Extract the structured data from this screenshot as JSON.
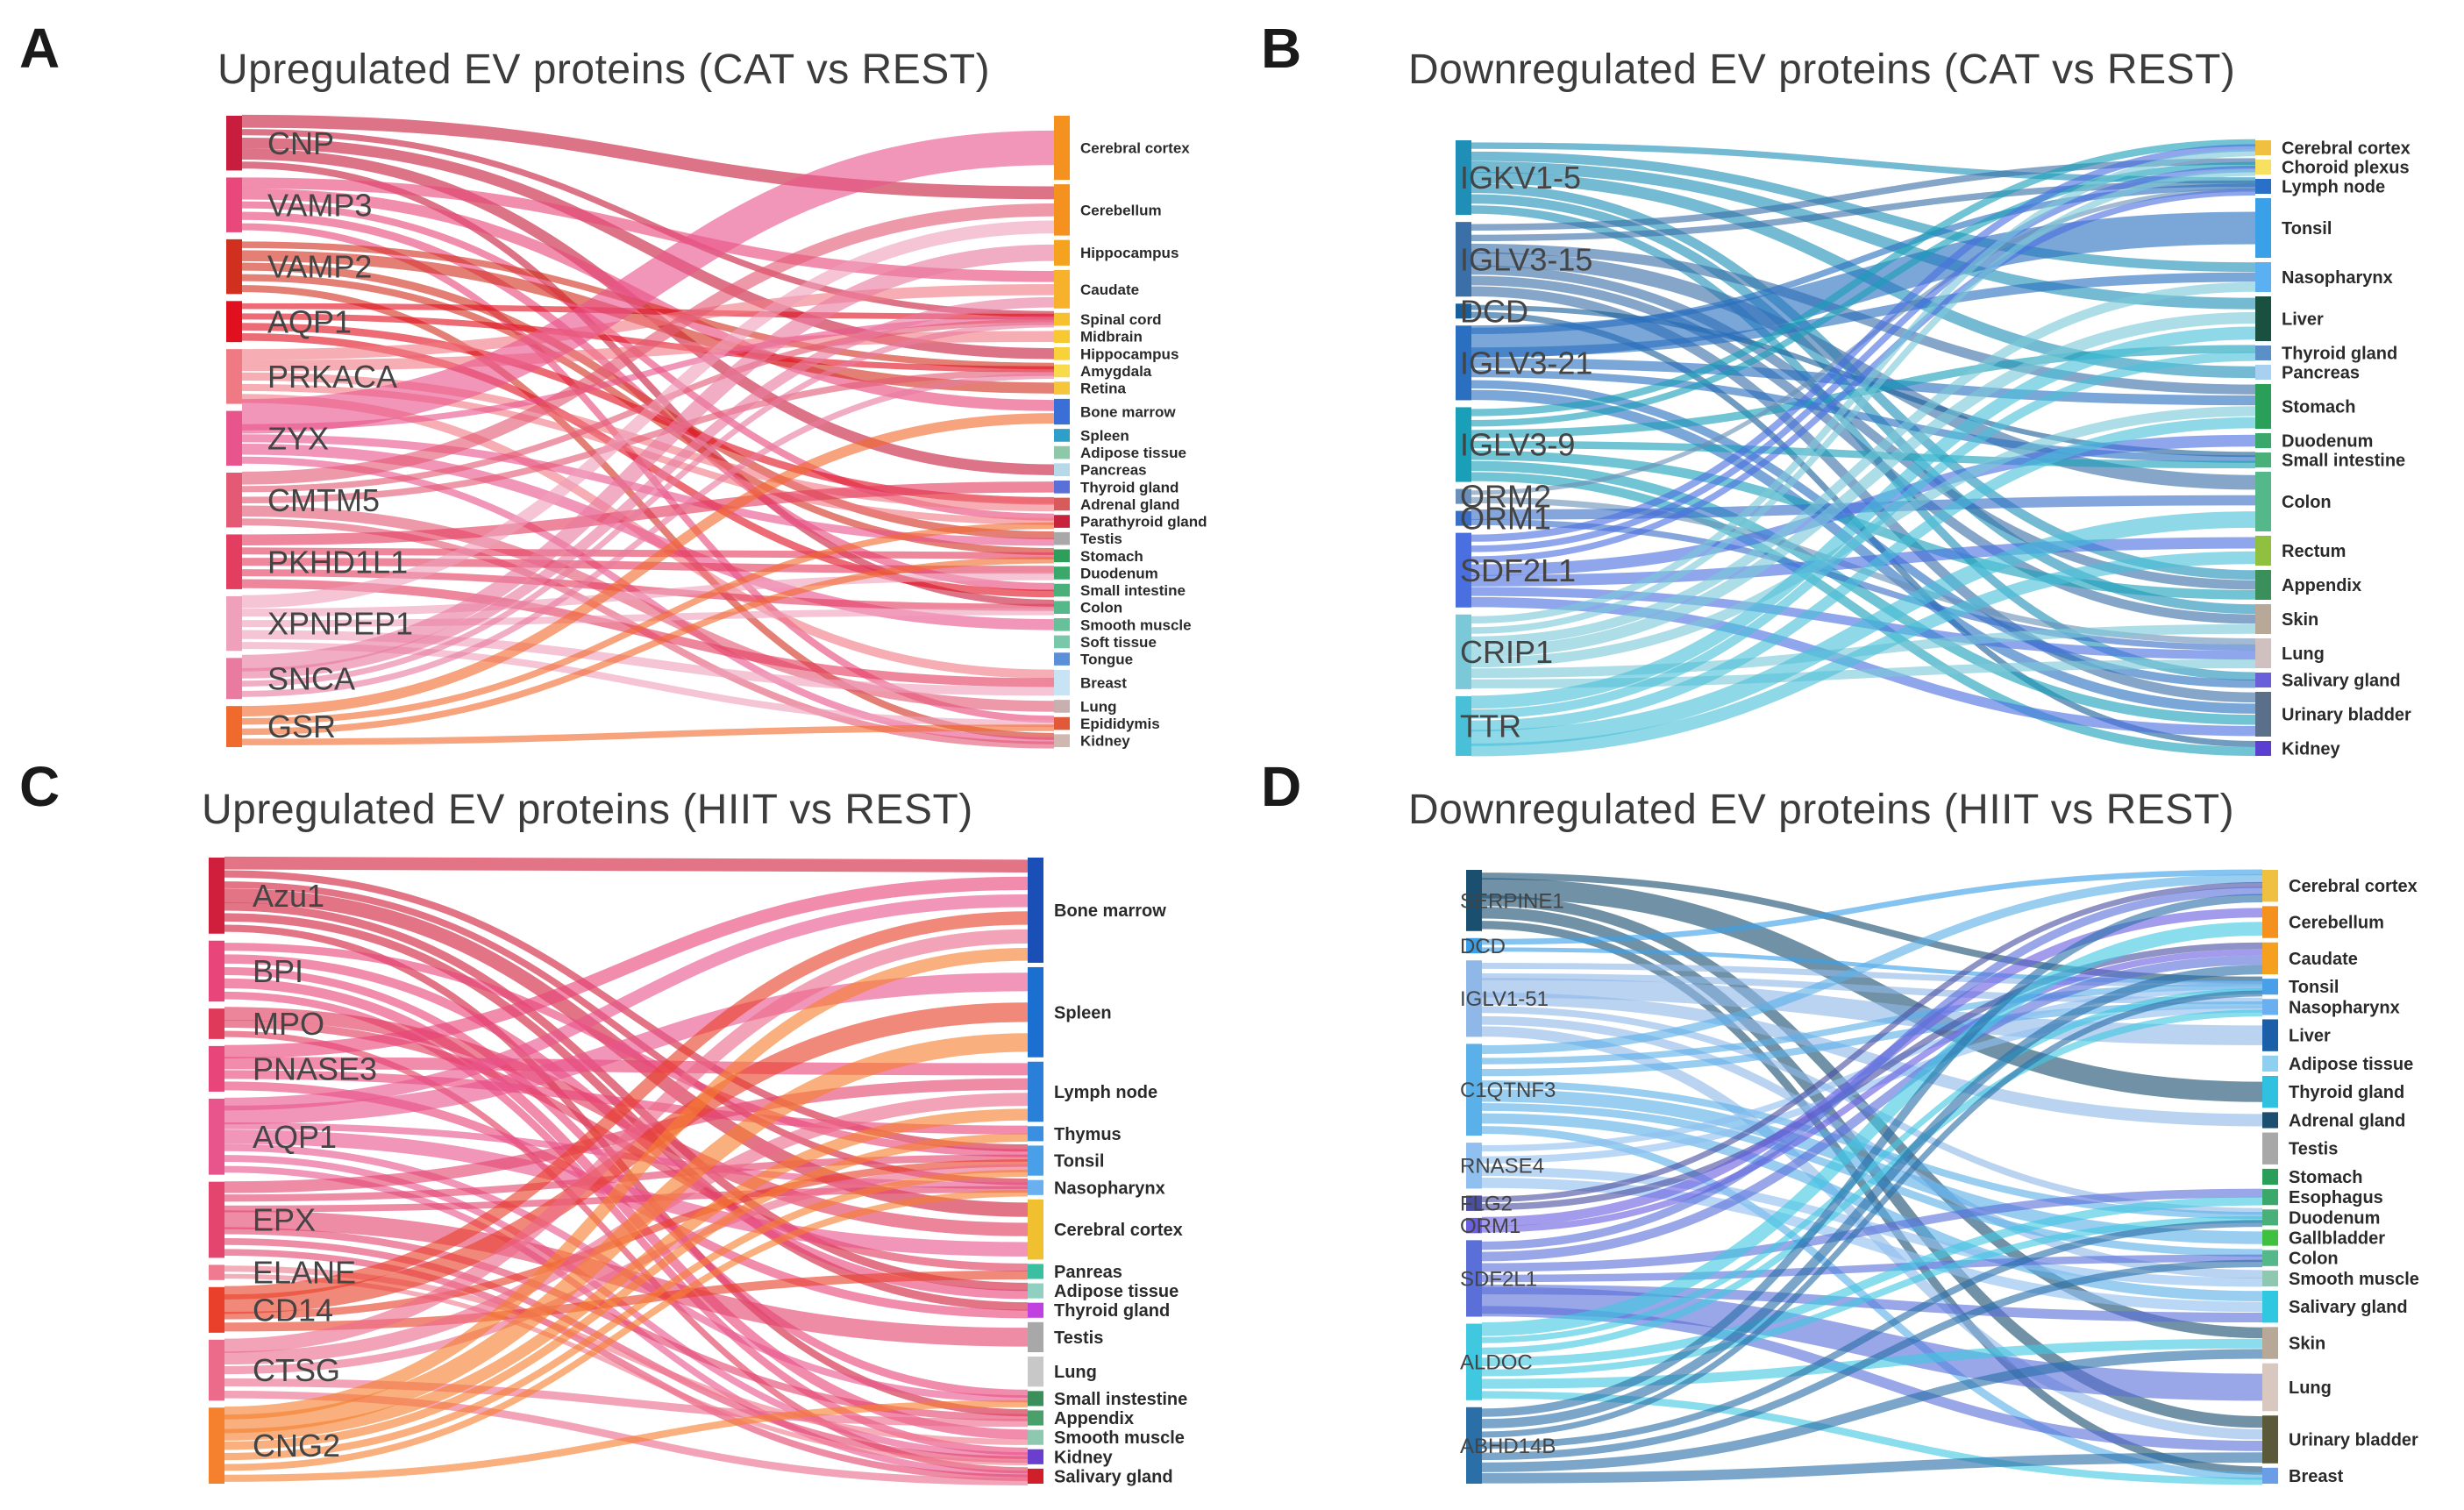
{
  "panels": [
    {
      "letter": "A",
      "title": "Upregulated EV proteins (CAT vs REST)",
      "palette": "pink",
      "sources": [
        {
          "name": "CNP",
          "color": "#c81d3c",
          "weight": 4
        },
        {
          "name": "VAMP3",
          "color": "#e8497a",
          "weight": 4
        },
        {
          "name": "VAMP2",
          "color": "#d2301f",
          "weight": 4
        },
        {
          "name": "AQP1",
          "color": "#e0101f",
          "weight": 3
        },
        {
          "name": "PRKACA",
          "color": "#f07a84",
          "weight": 4
        },
        {
          "name": "ZYX",
          "color": "#e8558c",
          "weight": 4
        },
        {
          "name": "CMTM5",
          "color": "#e45a74",
          "weight": 4
        },
        {
          "name": "PKHD1L1",
          "color": "#e33d5f",
          "weight": 4
        },
        {
          "name": "XPNPEP1",
          "color": "#efa0bb",
          "weight": 4
        },
        {
          "name": "SNCA",
          "color": "#e97aa0",
          "weight": 3
        },
        {
          "name": "GSR",
          "color": "#f06a2e",
          "weight": 3
        }
      ],
      "targets": [
        {
          "name": "Cerebral cortex",
          "color": "#f5911e",
          "weight": 5
        },
        {
          "name": "Cerebellum",
          "color": "#f5911e",
          "weight": 4
        },
        {
          "name": "Hippocampus",
          "color": "#f5a21e",
          "weight": 2
        },
        {
          "name": "Caudate",
          "color": "#f7b12a",
          "weight": 3
        },
        {
          "name": "Spinal cord",
          "color": "#f7c02c",
          "weight": 1
        },
        {
          "name": "Midbrain",
          "color": "#f7c830",
          "weight": 1
        },
        {
          "name": "Hippocampus",
          "color": "#f8d23a",
          "weight": 1
        },
        {
          "name": "Amygdala",
          "color": "#f9da4a",
          "weight": 1
        },
        {
          "name": "Retina",
          "color": "#f5c63a",
          "weight": 1
        },
        {
          "name": "Bone marrow",
          "color": "#3b6fd8",
          "weight": 2
        },
        {
          "name": "Spleen",
          "color": "#2e9fc8",
          "weight": 1
        },
        {
          "name": "Adipose tissue",
          "color": "#8fc8a8",
          "weight": 1
        },
        {
          "name": "Pancreas",
          "color": "#b6d8e8",
          "weight": 1
        },
        {
          "name": "Thyroid gland",
          "color": "#5b6fd8",
          "weight": 1
        },
        {
          "name": "Adrenal gland",
          "color": "#d85a5a",
          "weight": 1
        },
        {
          "name": "Parathyroid gland",
          "color": "#c8233c",
          "weight": 1
        },
        {
          "name": "Testis",
          "color": "#a8a8a8",
          "weight": 1
        },
        {
          "name": "Stomach",
          "color": "#2e9f5a",
          "weight": 1
        },
        {
          "name": "Duodenum",
          "color": "#3aa86a",
          "weight": 1
        },
        {
          "name": "Small intestine",
          "color": "#4ab07a",
          "weight": 1
        },
        {
          "name": "Colon",
          "color": "#55b88a",
          "weight": 1
        },
        {
          "name": "Smooth muscle",
          "color": "#66c09a",
          "weight": 1
        },
        {
          "name": "Soft tissue",
          "color": "#7ac8aa",
          "weight": 1
        },
        {
          "name": "Tongue",
          "color": "#5b8fd8",
          "weight": 1
        },
        {
          "name": "Breast",
          "color": "#c8e4f4",
          "weight": 2
        },
        {
          "name": "Lung",
          "color": "#c8b0b0",
          "weight": 1
        },
        {
          "name": "Epididymis",
          "color": "#e05a3a",
          "weight": 1
        },
        {
          "name": "Kidney",
          "color": "#d0b8b0",
          "weight": 1
        }
      ]
    },
    {
      "letter": "B",
      "title": "Downregulated EV proteins (CAT vs REST)",
      "palette": "blue",
      "sources": [
        {
          "name": "IGKV1-5",
          "color": "#1f8fb8",
          "weight": 5
        },
        {
          "name": "IGLV3-15",
          "color": "#3a6fa8",
          "weight": 5
        },
        {
          "name": "DCD",
          "color": "#1a5f9a",
          "weight": 1
        },
        {
          "name": "IGLV3-21",
          "color": "#2a6fc0",
          "weight": 5
        },
        {
          "name": "IGLV3-9",
          "color": "#1a9fb8",
          "weight": 5
        },
        {
          "name": "ORM2",
          "color": "#6a8fb8",
          "weight": 1
        },
        {
          "name": "ORM1",
          "color": "#3a6fc8",
          "weight": 1
        },
        {
          "name": "SDF2L1",
          "color": "#4a6fe0",
          "weight": 5
        },
        {
          "name": "CRIP1",
          "color": "#7ac8d8",
          "weight": 5
        },
        {
          "name": "TTR",
          "color": "#4ac0d8",
          "weight": 4
        }
      ],
      "targets": [
        {
          "name": "Cerebral cortex",
          "color": "#f0c040",
          "weight": 1
        },
        {
          "name": "Choroid plexus",
          "color": "#f8e060",
          "weight": 1
        },
        {
          "name": "Lymph node",
          "color": "#2a6fc8",
          "weight": 1
        },
        {
          "name": "Tonsil",
          "color": "#3aa0e8",
          "weight": 4
        },
        {
          "name": "Nasopharynx",
          "color": "#5ab0f0",
          "weight": 2
        },
        {
          "name": "Liver",
          "color": "#1a5040",
          "weight": 3
        },
        {
          "name": "Thyroid gland",
          "color": "#5a8fc8",
          "weight": 1
        },
        {
          "name": "Pancreas",
          "color": "#a8d0f0",
          "weight": 1
        },
        {
          "name": "Stomach",
          "color": "#2a9f5a",
          "weight": 3
        },
        {
          "name": "Duodenum",
          "color": "#3aa86a",
          "weight": 1
        },
        {
          "name": "Small intestine",
          "color": "#4ab07a",
          "weight": 1
        },
        {
          "name": "Colon",
          "color": "#55b88a",
          "weight": 4
        },
        {
          "name": "Rectum",
          "color": "#8fc040",
          "weight": 2
        },
        {
          "name": "Appendix",
          "color": "#3a8f5a",
          "weight": 2
        },
        {
          "name": "Skin",
          "color": "#b8a898",
          "weight": 2
        },
        {
          "name": "Lung",
          "color": "#d0c0c0",
          "weight": 2
        },
        {
          "name": "Salivary gland",
          "color": "#6a5fd8",
          "weight": 1
        },
        {
          "name": "Urinary bladder",
          "color": "#5a6f8a",
          "weight": 3
        },
        {
          "name": "Kidney",
          "color": "#5a3fd0",
          "weight": 1
        }
      ]
    },
    {
      "letter": "C",
      "title": "Upregulated EV proteins (HIIT vs REST)",
      "palette": "pink",
      "sources": [
        {
          "name": "Azu1",
          "color": "#d01f3c",
          "weight": 5
        },
        {
          "name": "BPI",
          "color": "#e8457a",
          "weight": 4
        },
        {
          "name": "MPO",
          "color": "#e03a5a",
          "weight": 2
        },
        {
          "name": "PNASE3",
          "color": "#e8457a",
          "weight": 3
        },
        {
          "name": "AQP1",
          "color": "#e8558c",
          "weight": 5
        },
        {
          "name": "EPX",
          "color": "#e3456f",
          "weight": 5
        },
        {
          "name": "ELANE",
          "color": "#f07a90",
          "weight": 1
        },
        {
          "name": "CD14",
          "color": "#e8402a",
          "weight": 3
        },
        {
          "name": "CTSG",
          "color": "#ec6a8a",
          "weight": 4
        },
        {
          "name": "CNG2",
          "color": "#f5802e",
          "weight": 5
        }
      ],
      "targets": [
        {
          "name": "Bone marrow",
          "color": "#1a4fb8",
          "weight": 7
        },
        {
          "name": "Spleen",
          "color": "#1a6fd0",
          "weight": 6
        },
        {
          "name": "Lymph node",
          "color": "#2a7fd8",
          "weight": 4
        },
        {
          "name": "Thymus",
          "color": "#3a8fe0",
          "weight": 1
        },
        {
          "name": "Tonsil",
          "color": "#4aa0e8",
          "weight": 2
        },
        {
          "name": "Nasopharynx",
          "color": "#6ab0f0",
          "weight": 1
        },
        {
          "name": "Cerebral cortex",
          "color": "#f0c030",
          "weight": 4
        },
        {
          "name": "Panreas",
          "color": "#3ac0a0",
          "weight": 1
        },
        {
          "name": "Adipose tissue",
          "color": "#8fd0c0",
          "weight": 1
        },
        {
          "name": "Thyroid gland",
          "color": "#c040e0",
          "weight": 1
        },
        {
          "name": "Testis",
          "color": "#a8a8a8",
          "weight": 2
        },
        {
          "name": "Lung",
          "color": "#c8c8c8",
          "weight": 2
        },
        {
          "name": "Small instestine",
          "color": "#3a8f5a",
          "weight": 1
        },
        {
          "name": "Appendix",
          "color": "#4aa06a",
          "weight": 1
        },
        {
          "name": "Smooth muscle",
          "color": "#8fc8b0",
          "weight": 1
        },
        {
          "name": "Kidney",
          "color": "#6a3fd0",
          "weight": 1
        },
        {
          "name": "Salivary gland",
          "color": "#d01f2a",
          "weight": 1
        }
      ]
    },
    {
      "letter": "D",
      "title": "Downregulated EV proteins (HIIT vs REST)",
      "palette": "blue",
      "sources": [
        {
          "name": "SERPINE1",
          "color": "#1a4f70",
          "weight": 4
        },
        {
          "name": "DCD",
          "color": "#3a9fe8",
          "weight": 1
        },
        {
          "name": "IGLV1-51",
          "color": "#8fb8e8",
          "weight": 5
        },
        {
          "name": "C1QTNF3",
          "color": "#5ab0e8",
          "weight": 6
        },
        {
          "name": "RNASE4",
          "color": "#8fc0f0",
          "weight": 3
        },
        {
          "name": "FLG2",
          "color": "#4a4fa0",
          "weight": 1
        },
        {
          "name": "ORM1",
          "color": "#6a5fe0",
          "weight": 1
        },
        {
          "name": "SDF2L1",
          "color": "#5a6fd8",
          "weight": 5
        },
        {
          "name": "ALDOC",
          "color": "#40c8e0",
          "weight": 5
        },
        {
          "name": "ABHD14B",
          "color": "#2a6fa8",
          "weight": 5
        }
      ],
      "targets": [
        {
          "name": "Cerebral cortex",
          "color": "#f0c040",
          "weight": 2
        },
        {
          "name": "Cerebellum",
          "color": "#f5911e",
          "weight": 2
        },
        {
          "name": "Caudate",
          "color": "#f5a01e",
          "weight": 2
        },
        {
          "name": "Tonsil",
          "color": "#4aa0e8",
          "weight": 1
        },
        {
          "name": "Nasopharynx",
          "color": "#6ab0f0",
          "weight": 1
        },
        {
          "name": "Liver",
          "color": "#1a5fa8",
          "weight": 2
        },
        {
          "name": "Adipose tissue",
          "color": "#8fd0f0",
          "weight": 1
        },
        {
          "name": "Thyroid gland",
          "color": "#30c0e0",
          "weight": 2
        },
        {
          "name": "Adrenal gland",
          "color": "#1a4f70",
          "weight": 1
        },
        {
          "name": "Testis",
          "color": "#a8a8a8",
          "weight": 2
        },
        {
          "name": "Stomach",
          "color": "#2a9f5a",
          "weight": 1
        },
        {
          "name": "Esophagus",
          "color": "#3aa86a",
          "weight": 1
        },
        {
          "name": "Duodenum",
          "color": "#4ab07a",
          "weight": 1
        },
        {
          "name": "Gallbladder",
          "color": "#40c040",
          "weight": 1
        },
        {
          "name": "Colon",
          "color": "#55b88a",
          "weight": 1
        },
        {
          "name": "Smooth muscle",
          "color": "#8fc8b0",
          "weight": 1
        },
        {
          "name": "Salivary gland",
          "color": "#30c8e0",
          "weight": 2
        },
        {
          "name": "Skin",
          "color": "#b8a898",
          "weight": 2
        },
        {
          "name": "Lung",
          "color": "#d8c8c0",
          "weight": 3
        },
        {
          "name": "Urinary bladder",
          "color": "#5a5a3a",
          "weight": 3
        },
        {
          "name": "Breast",
          "color": "#6a9fe8",
          "weight": 1
        }
      ]
    }
  ]
}
